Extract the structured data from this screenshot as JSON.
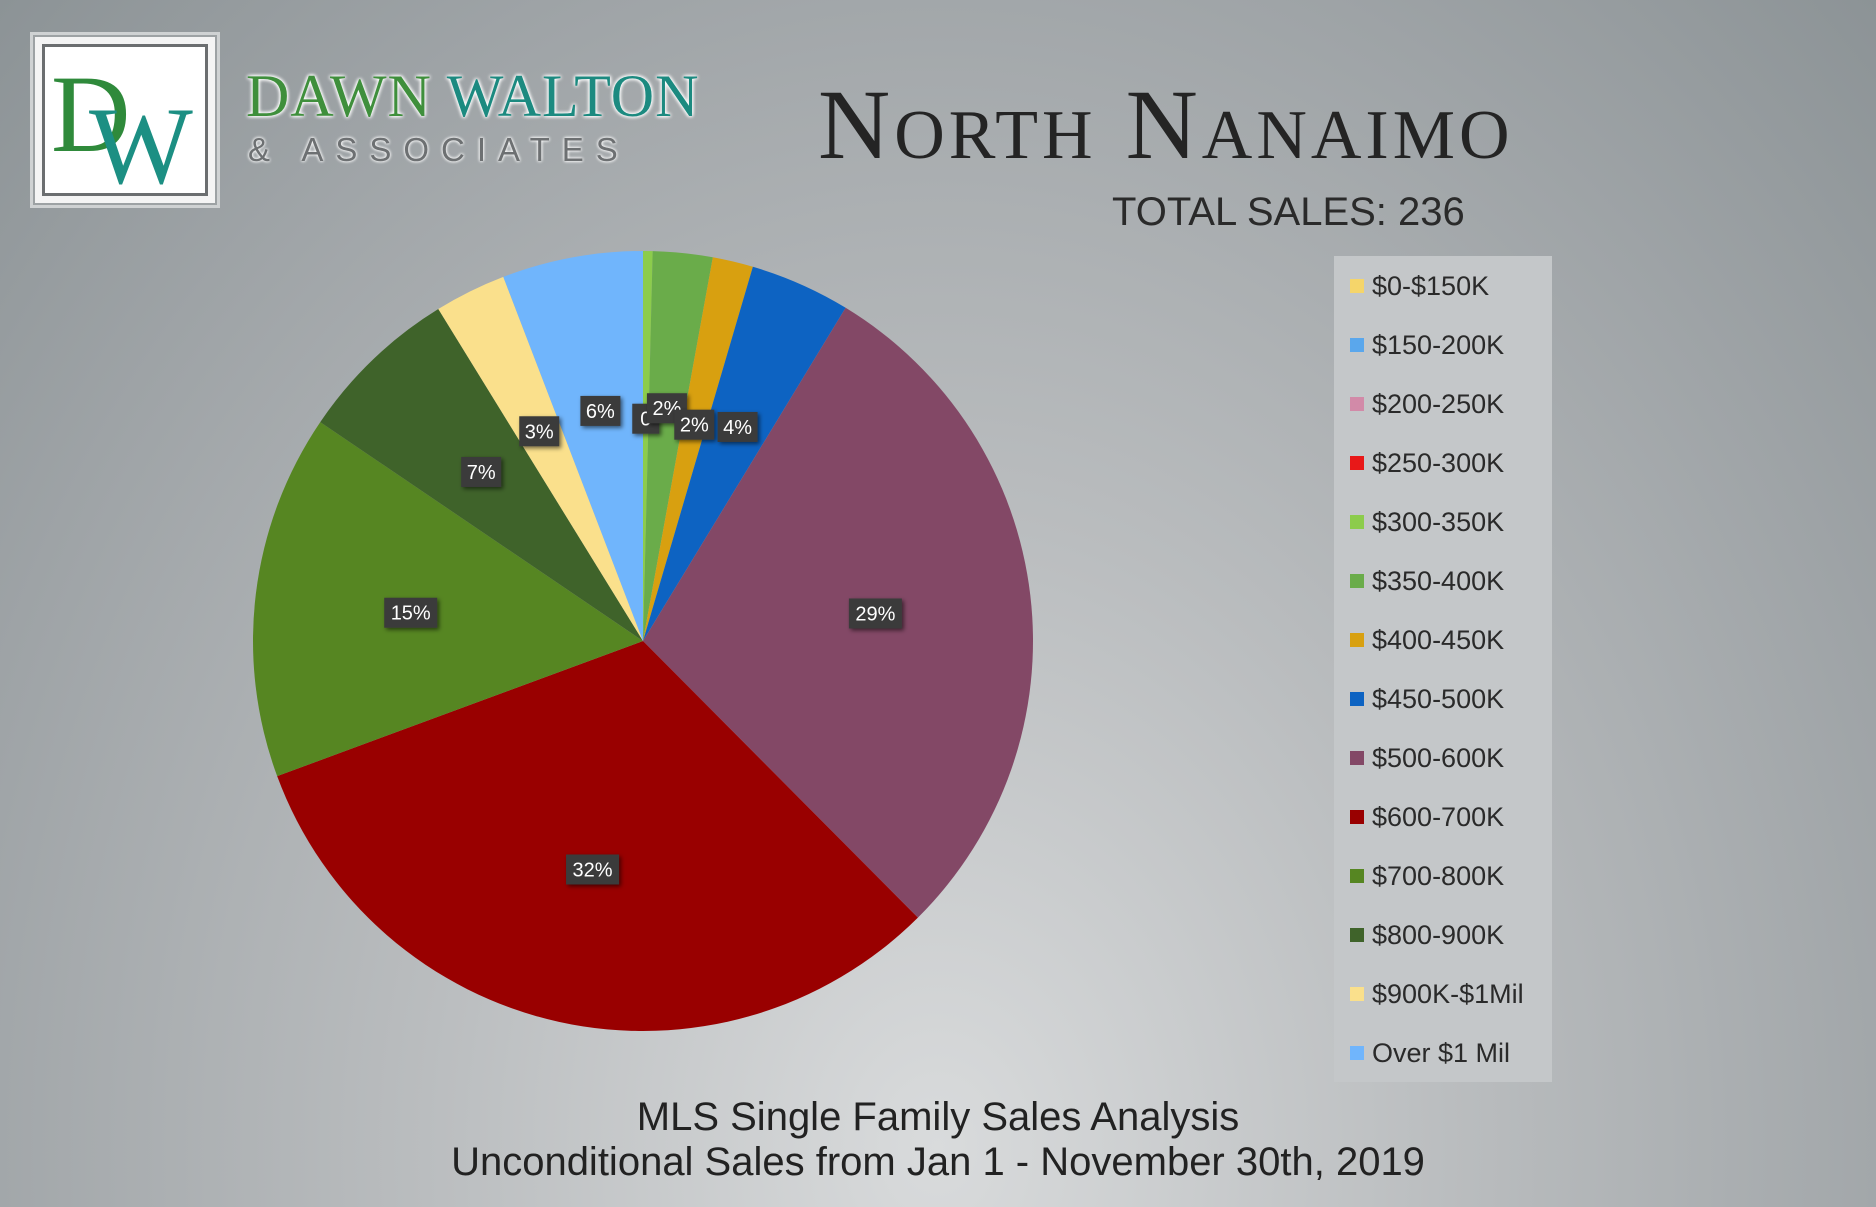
{
  "branding": {
    "logo_monogram": "DW",
    "name_line1_a": "DAWN",
    "name_line1_b": "WALTON",
    "name_line2": "& ASSOCIATES"
  },
  "header": {
    "title": "North Nanaimo",
    "subtitle": "TOTAL SALES: 236"
  },
  "footer": {
    "line1": "MLS Single Family Sales Analysis",
    "line2": "Unconditional Sales from Jan 1 - November 30th, 2019"
  },
  "chart_data": {
    "type": "pie",
    "title": "North Nanaimo",
    "legend_position": "right",
    "slices": [
      {
        "label": "$0-$150K",
        "value": 0,
        "display": "",
        "color": "#f5d56a"
      },
      {
        "label": "$150-200K",
        "value": 0,
        "display": "",
        "color": "#5aa7ec"
      },
      {
        "label": "$200-250K",
        "value": 0,
        "display": "",
        "color": "#d28aa8"
      },
      {
        "label": "$250-300K",
        "value": 0,
        "display": "",
        "color": "#e81818"
      },
      {
        "label": "$300-350K",
        "value": 0.4,
        "display": "0",
        "color": "#8ccc4c"
      },
      {
        "label": "$350-400K",
        "value": 2.5,
        "display": "2%",
        "color": "#6aac4a"
      },
      {
        "label": "$400-450K",
        "value": 1.7,
        "display": "2%",
        "color": "#d8a010"
      },
      {
        "label": "$450-500K",
        "value": 4.2,
        "display": "4%",
        "color": "#0d63c2"
      },
      {
        "label": "$500-600K",
        "value": 29.2,
        "display": "29%",
        "color": "#834866"
      },
      {
        "label": "$600-700K",
        "value": 32.2,
        "display": "32%",
        "color": "#990000"
      },
      {
        "label": "$700-800K",
        "value": 15.3,
        "display": "15%",
        "color": "#568622"
      },
      {
        "label": "$800-900K",
        "value": 6.8,
        "display": "7%",
        "color": "#3f632a"
      },
      {
        "label": "$900K-$1Mil",
        "value": 3.0,
        "display": "3%",
        "color": "#fae08c"
      },
      {
        "label": "Over $1 Mil",
        "value": 5.9,
        "display": "6%",
        "color": "#70b5fc"
      }
    ]
  }
}
